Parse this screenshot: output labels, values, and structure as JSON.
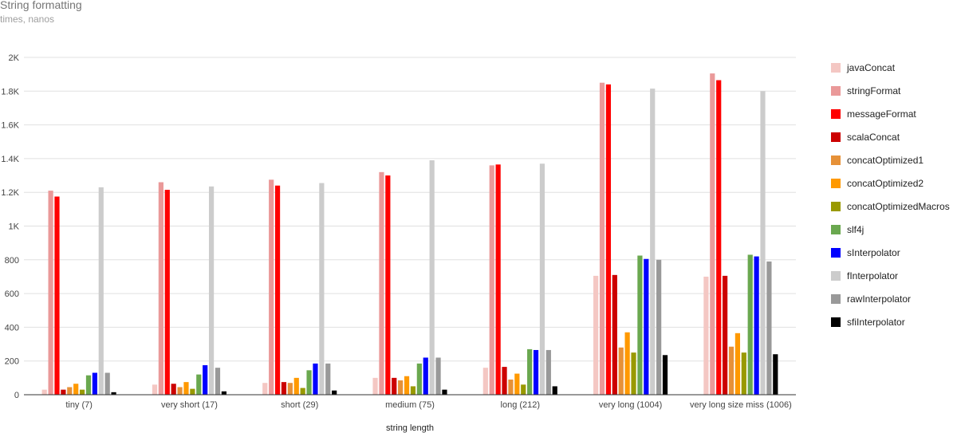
{
  "chart_data": {
    "type": "bar",
    "title": "String formatting",
    "subtitle": "times, nanos",
    "xlabel": "string length",
    "ylabel": "",
    "ylim": [
      0,
      2000
    ],
    "yticks": [
      0,
      200,
      400,
      600,
      800,
      1000,
      1200,
      1400,
      1600,
      1800,
      2000
    ],
    "ytick_labels": [
      "0",
      "200",
      "400",
      "600",
      "800",
      "1K",
      "1.2K",
      "1.4K",
      "1.6K",
      "1.8K",
      "2K"
    ],
    "grid": true,
    "legend_position": "right",
    "categories": [
      "tiny (7)",
      "very short (17)",
      "short (29)",
      "medium (75)",
      "long (212)",
      "very long (1004)",
      "very long size miss (1006)"
    ],
    "series": [
      {
        "name": "javaConcat",
        "color": "#f4c7c3",
        "values": [
          30,
          60,
          70,
          100,
          160,
          705,
          700
        ]
      },
      {
        "name": "stringFormat",
        "color": "#ea9999",
        "values": [
          1210,
          1260,
          1275,
          1320,
          1360,
          1850,
          1905
        ]
      },
      {
        "name": "messageFormat",
        "color": "#ff0000",
        "values": [
          1175,
          1215,
          1240,
          1300,
          1365,
          1840,
          1865
        ]
      },
      {
        "name": "scalaConcat",
        "color": "#cc0000",
        "values": [
          30,
          65,
          75,
          100,
          165,
          710,
          705
        ]
      },
      {
        "name": "concatOptimized1",
        "color": "#e69138",
        "values": [
          45,
          45,
          70,
          85,
          90,
          280,
          285
        ]
      },
      {
        "name": "concatOptimized2",
        "color": "#ff9900",
        "values": [
          65,
          75,
          100,
          110,
          125,
          370,
          365
        ]
      },
      {
        "name": "concatOptimizedMacros",
        "color": "#999900",
        "values": [
          30,
          35,
          40,
          50,
          60,
          250,
          250
        ]
      },
      {
        "name": "slf4j",
        "color": "#6aa84f",
        "values": [
          115,
          120,
          145,
          185,
          270,
          825,
          830
        ]
      },
      {
        "name": "sInterpolator",
        "color": "#0000ff",
        "values": [
          130,
          175,
          185,
          220,
          265,
          805,
          820
        ]
      },
      {
        "name": "fInterpolator",
        "color": "#cccccc",
        "values": [
          1230,
          1235,
          1255,
          1390,
          1370,
          1815,
          1800
        ]
      },
      {
        "name": "rawInterpolator",
        "color": "#999999",
        "values": [
          130,
          160,
          185,
          220,
          265,
          800,
          790
        ]
      },
      {
        "name": "sfiInterpolator",
        "color": "#000000",
        "values": [
          15,
          20,
          25,
          30,
          50,
          235,
          240
        ]
      }
    ]
  }
}
